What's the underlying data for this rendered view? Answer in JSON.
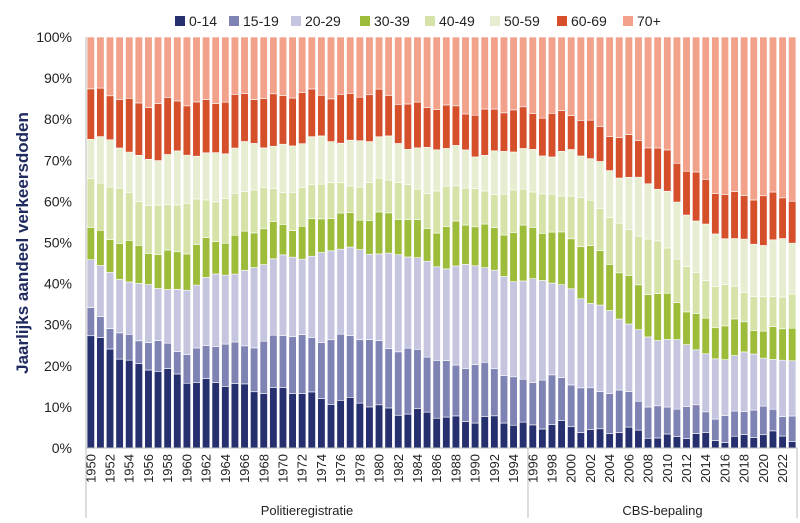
{
  "chart_data": {
    "type": "bar",
    "stacked": true,
    "ylabel": "Jaarlijks aandeel verkeersdoden",
    "ylim": [
      0,
      100
    ],
    "yticks": [
      "0%",
      "10%",
      "20%",
      "30%",
      "40%",
      "50%",
      "60%",
      "70%",
      "80%",
      "90%",
      "100%"
    ],
    "x_start": 1950,
    "x_end": 2023,
    "x_tick_labels": [
      "1950",
      "1952",
      "1954",
      "1956",
      "1958",
      "1960",
      "1962",
      "1964",
      "1966",
      "1968",
      "1970",
      "1972",
      "1974",
      "1976",
      "1978",
      "1980",
      "1982",
      "1984",
      "1986",
      "1988",
      "1990",
      "1992",
      "1994",
      "1996",
      "1998",
      "2000",
      "2002",
      "2004",
      "2006",
      "2008",
      "2010",
      "2012",
      "2014",
      "2016",
      "2018",
      "2020",
      "2022"
    ],
    "groups": [
      {
        "label": "Politieregistratie",
        "from": 1950,
        "to": 1995
      },
      {
        "label": "CBS-bepaling",
        "from": 1996,
        "to": 2023
      }
    ],
    "legend_position": "top",
    "series": [
      {
        "name": "0-14",
        "color": "#27306e",
        "keys": [
          [
            1950,
            27
          ],
          [
            1955,
            20
          ],
          [
            1960,
            17
          ],
          [
            1965,
            15
          ],
          [
            1970,
            14
          ],
          [
            1975,
            12
          ],
          [
            1980,
            10
          ],
          [
            1985,
            8
          ],
          [
            1990,
            7
          ],
          [
            1995,
            6
          ],
          [
            2000,
            5
          ],
          [
            2005,
            4
          ],
          [
            2010,
            3
          ],
          [
            2015,
            2.5
          ],
          [
            2020,
            3
          ],
          [
            2023,
            3
          ]
        ]
      },
      {
        "name": "15-19",
        "color": "#7f83b4",
        "keys": [
          [
            1950,
            6
          ],
          [
            1955,
            6
          ],
          [
            1960,
            7
          ],
          [
            1965,
            10
          ],
          [
            1970,
            13
          ],
          [
            1975,
            15
          ],
          [
            1980,
            16
          ],
          [
            1985,
            14
          ],
          [
            1990,
            13
          ],
          [
            1995,
            11
          ],
          [
            2000,
            11
          ],
          [
            2005,
            9
          ],
          [
            2010,
            7
          ],
          [
            2015,
            6
          ],
          [
            2020,
            6
          ],
          [
            2023,
            6
          ]
        ]
      },
      {
        "name": "20-29",
        "color": "#c5c5e0",
        "keys": [
          [
            1950,
            13
          ],
          [
            1955,
            13
          ],
          [
            1960,
            15
          ],
          [
            1965,
            18
          ],
          [
            1970,
            19
          ],
          [
            1975,
            21
          ],
          [
            1980,
            22
          ],
          [
            1985,
            23
          ],
          [
            1990,
            24
          ],
          [
            1995,
            24
          ],
          [
            2000,
            23
          ],
          [
            2005,
            18
          ],
          [
            2010,
            16
          ],
          [
            2015,
            14
          ],
          [
            2020,
            13
          ],
          [
            2023,
            13
          ]
        ]
      },
      {
        "name": "30-39",
        "color": "#9cbc3a",
        "keys": [
          [
            1950,
            8
          ],
          [
            1955,
            9
          ],
          [
            1960,
            9
          ],
          [
            1965,
            9
          ],
          [
            1970,
            8
          ],
          [
            1975,
            8
          ],
          [
            1980,
            9
          ],
          [
            1985,
            9
          ],
          [
            1990,
            10
          ],
          [
            1995,
            12
          ],
          [
            2000,
            13
          ],
          [
            2005,
            12
          ],
          [
            2010,
            10
          ],
          [
            2015,
            8
          ],
          [
            2020,
            7
          ],
          [
            2023,
            8
          ]
        ]
      },
      {
        "name": "40-49",
        "color": "#d5e2a8",
        "keys": [
          [
            1950,
            12
          ],
          [
            1955,
            12
          ],
          [
            1960,
            11
          ],
          [
            1965,
            10
          ],
          [
            1970,
            9
          ],
          [
            1975,
            8
          ],
          [
            1980,
            8
          ],
          [
            1985,
            9
          ],
          [
            1990,
            9
          ],
          [
            1995,
            9
          ],
          [
            2000,
            10
          ],
          [
            2005,
            12
          ],
          [
            2010,
            12
          ],
          [
            2015,
            9
          ],
          [
            2020,
            8
          ],
          [
            2023,
            7
          ]
        ]
      },
      {
        "name": "50-59",
        "color": "#e6edd0",
        "keys": [
          [
            1950,
            10
          ],
          [
            1955,
            11
          ],
          [
            1960,
            12
          ],
          [
            1965,
            11
          ],
          [
            1970,
            11
          ],
          [
            1975,
            11
          ],
          [
            1980,
            10
          ],
          [
            1985,
            10
          ],
          [
            1990,
            9
          ],
          [
            1995,
            10
          ],
          [
            2000,
            10
          ],
          [
            2005,
            12
          ],
          [
            2010,
            14
          ],
          [
            2015,
            12
          ],
          [
            2020,
            13
          ],
          [
            2023,
            13
          ]
        ]
      },
      {
        "name": "60-69",
        "color": "#d54f2b",
        "keys": [
          [
            1950,
            11
          ],
          [
            1955,
            13
          ],
          [
            1960,
            13
          ],
          [
            1965,
            12
          ],
          [
            1970,
            12
          ],
          [
            1975,
            11
          ],
          [
            1980,
            11
          ],
          [
            1985,
            10
          ],
          [
            1990,
            10
          ],
          [
            1995,
            10
          ],
          [
            2000,
            9
          ],
          [
            2005,
            9
          ],
          [
            2010,
            10
          ],
          [
            2015,
            11
          ],
          [
            2020,
            11
          ],
          [
            2023,
            11
          ]
        ]
      },
      {
        "name": "70+",
        "color": "#f2a28a",
        "keys": [
          [
            1950,
            13
          ],
          [
            1955,
            16
          ],
          [
            1960,
            16
          ],
          [
            1965,
            15
          ],
          [
            1970,
            14
          ],
          [
            1975,
            14
          ],
          [
            1980,
            14
          ],
          [
            1985,
            17
          ],
          [
            1990,
            18
          ],
          [
            1995,
            18
          ],
          [
            2000,
            19
          ],
          [
            2005,
            24
          ],
          [
            2010,
            28
          ],
          [
            2015,
            37.5
          ],
          [
            2020,
            39
          ],
          [
            2023,
            39
          ]
        ]
      }
    ]
  }
}
